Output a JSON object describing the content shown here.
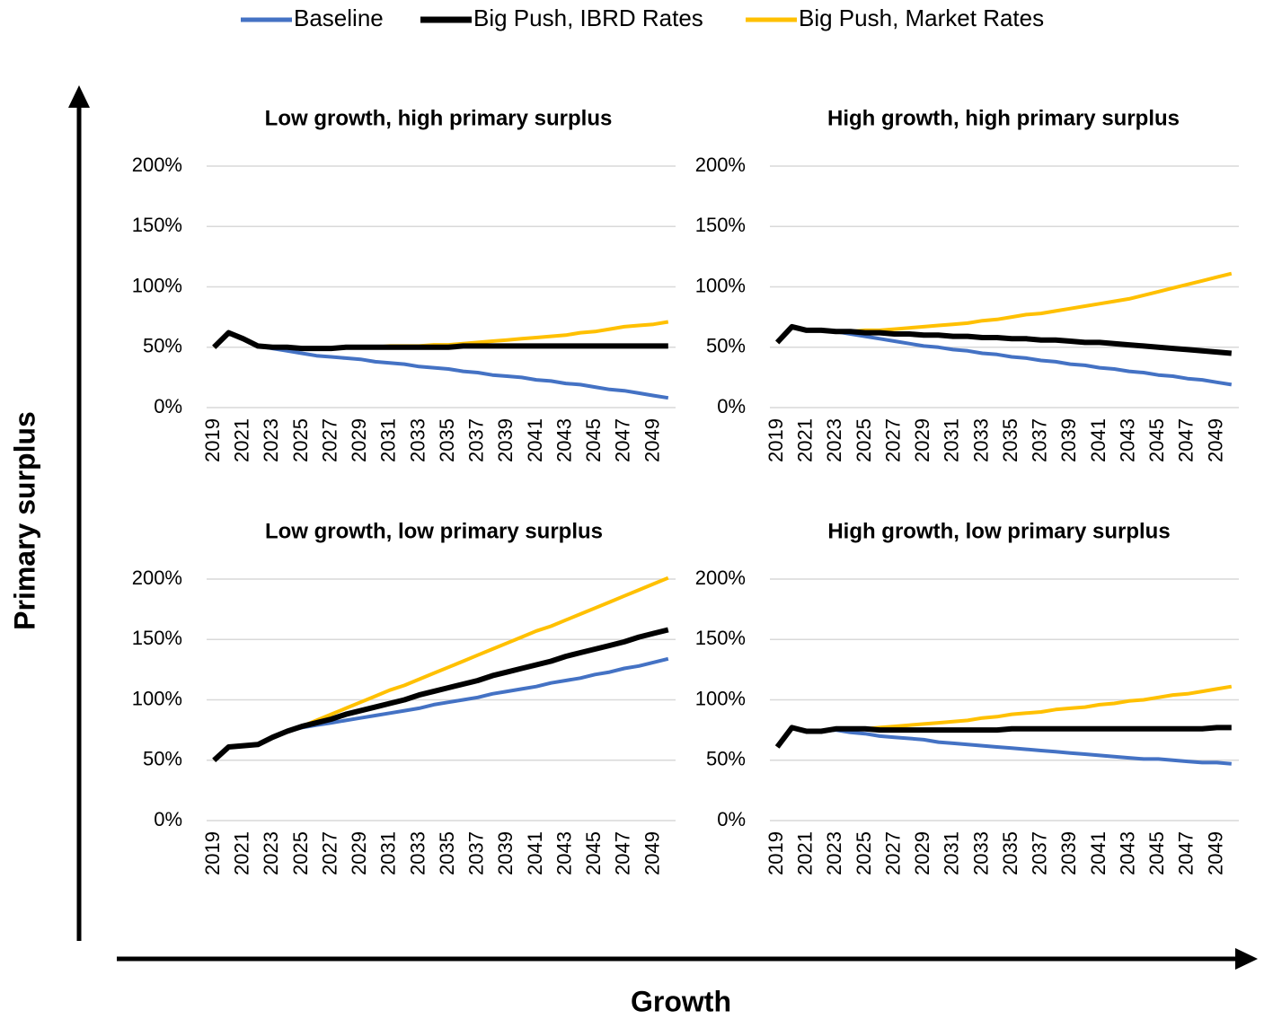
{
  "legend": [
    {
      "name": "Baseline",
      "color": "#4472c4"
    },
    {
      "name": "Big Push, IBRD Rates",
      "color": "#000000"
    },
    {
      "name": "Big Push, Market Rates",
      "color": "#ffc000"
    }
  ],
  "y_axis_label": "Primary surplus",
  "x_axis_label": "Growth",
  "chart_data": [
    {
      "type": "line",
      "title": "Low growth, high primary surplus",
      "categories": [
        "2019",
        null,
        "2021",
        null,
        "2023",
        null,
        "2025",
        null,
        "2027",
        null,
        "2029",
        null,
        "2031",
        null,
        "2033",
        null,
        "2035",
        null,
        "2037",
        null,
        "2039",
        null,
        "2041",
        null,
        "2043",
        null,
        "2045",
        null,
        "2047",
        null,
        "2049",
        null
      ],
      "series": [
        {
          "values": [
            50,
            62,
            57,
            51,
            49,
            47,
            45,
            43,
            42,
            41,
            40,
            38,
            37,
            36,
            34,
            33,
            32,
            30,
            29,
            27,
            26,
            25,
            23,
            22,
            20,
            19,
            17,
            15,
            14,
            12,
            10,
            8
          ]
        },
        {
          "values": [
            50,
            62,
            57,
            51,
            50,
            50,
            49,
            49,
            49,
            50,
            50,
            50,
            50,
            50,
            50,
            50,
            50,
            51,
            51,
            51,
            51,
            51,
            51,
            51,
            51,
            51,
            51,
            51,
            51,
            51,
            51,
            51
          ]
        },
        {
          "values": [
            50,
            62,
            57,
            51,
            50,
            50,
            49,
            49,
            49,
            50,
            50,
            50,
            51,
            51,
            51,
            52,
            52,
            53,
            54,
            55,
            56,
            57,
            58,
            59,
            60,
            62,
            63,
            65,
            67,
            68,
            69,
            71
          ]
        }
      ],
      "ylim": [
        0,
        200
      ],
      "yticks": [
        {
          "value": 0,
          "label": "0%"
        },
        {
          "value": 50,
          "label": "50%"
        },
        {
          "value": 100,
          "label": "100%"
        },
        {
          "value": 150,
          "label": "150%"
        },
        {
          "value": 200,
          "label": "200%"
        }
      ],
      "grid": true
    },
    {
      "type": "line",
      "title": "High growth, high primary surplus",
      "categories": [
        "2019",
        null,
        "2021",
        null,
        "2023",
        null,
        "2025",
        null,
        "2027",
        null,
        "2029",
        null,
        "2031",
        null,
        "2033",
        null,
        "2035",
        null,
        "2037",
        null,
        "2039",
        null,
        "2041",
        null,
        "2043",
        null,
        "2045",
        null,
        "2047",
        null,
        "2049",
        null
      ],
      "series": [
        {
          "values": [
            54,
            67,
            64,
            64,
            63,
            61,
            59,
            57,
            55,
            53,
            51,
            50,
            48,
            47,
            45,
            44,
            42,
            41,
            39,
            38,
            36,
            35,
            33,
            32,
            30,
            29,
            27,
            26,
            24,
            23,
            21,
            19
          ]
        },
        {
          "values": [
            54,
            67,
            64,
            64,
            63,
            63,
            62,
            62,
            61,
            61,
            60,
            60,
            59,
            59,
            58,
            58,
            57,
            57,
            56,
            56,
            55,
            54,
            54,
            53,
            52,
            51,
            50,
            49,
            48,
            47,
            46,
            45
          ]
        },
        {
          "values": [
            54,
            67,
            64,
            64,
            63,
            63,
            64,
            64,
            65,
            66,
            67,
            68,
            69,
            70,
            72,
            73,
            75,
            77,
            78,
            80,
            82,
            84,
            86,
            88,
            90,
            93,
            96,
            99,
            102,
            105,
            108,
            111
          ]
        }
      ],
      "ylim": [
        0,
        200
      ],
      "yticks": [
        {
          "value": 0,
          "label": "0%"
        },
        {
          "value": 50,
          "label": "50%"
        },
        {
          "value": 100,
          "label": "100%"
        },
        {
          "value": 150,
          "label": "150%"
        },
        {
          "value": 200,
          "label": "200%"
        }
      ],
      "grid": true
    },
    {
      "type": "line",
      "title": "Low growth, low primary surplus",
      "categories": [
        "2019",
        null,
        "2021",
        null,
        "2023",
        null,
        "2025",
        null,
        "2027",
        null,
        "2029",
        null,
        "2031",
        null,
        "2033",
        null,
        "2035",
        null,
        "2037",
        null,
        "2039",
        null,
        "2041",
        null,
        "2043",
        null,
        "2045",
        null,
        "2047",
        null,
        "2049",
        null
      ],
      "series": [
        {
          "values": [
            50,
            61,
            62,
            63,
            69,
            74,
            77,
            79,
            81,
            83,
            85,
            87,
            89,
            91,
            93,
            96,
            98,
            100,
            102,
            105,
            107,
            109,
            111,
            114,
            116,
            118,
            121,
            123,
            126,
            128,
            131,
            134
          ]
        },
        {
          "values": [
            50,
            61,
            62,
            63,
            69,
            74,
            78,
            81,
            84,
            88,
            91,
            94,
            97,
            100,
            104,
            107,
            110,
            113,
            116,
            120,
            123,
            126,
            129,
            132,
            136,
            139,
            142,
            145,
            148,
            152,
            155,
            158
          ]
        },
        {
          "values": [
            50,
            61,
            62,
            63,
            69,
            74,
            78,
            83,
            88,
            93,
            98,
            103,
            108,
            112,
            117,
            122,
            127,
            132,
            137,
            142,
            147,
            152,
            157,
            161,
            166,
            171,
            176,
            181,
            186,
            191,
            196,
            201
          ]
        }
      ],
      "ylim": [
        0,
        200
      ],
      "yticks": [
        {
          "value": 0,
          "label": "0%"
        },
        {
          "value": 50,
          "label": "50%"
        },
        {
          "value": 100,
          "label": "100%"
        },
        {
          "value": 150,
          "label": "150%"
        },
        {
          "value": 200,
          "label": "200%"
        }
      ],
      "grid": true
    },
    {
      "type": "line",
      "title": "High growth, low primary surplus",
      "categories": [
        "2019",
        null,
        "2021",
        null,
        "2023",
        null,
        "2025",
        null,
        "2027",
        null,
        "2029",
        null,
        "2031",
        null,
        "2033",
        null,
        "2035",
        null,
        "2037",
        null,
        "2039",
        null,
        "2041",
        null,
        "2043",
        null,
        "2045",
        null,
        "2047",
        null,
        "2049",
        null
      ],
      "series": [
        {
          "values": [
            61,
            77,
            74,
            74,
            75,
            73,
            72,
            70,
            69,
            68,
            67,
            65,
            64,
            63,
            62,
            61,
            60,
            59,
            58,
            57,
            56,
            55,
            54,
            53,
            52,
            51,
            51,
            50,
            49,
            48,
            48,
            47
          ]
        },
        {
          "values": [
            61,
            77,
            74,
            74,
            76,
            76,
            76,
            75,
            75,
            75,
            75,
            75,
            75,
            75,
            75,
            75,
            76,
            76,
            76,
            76,
            76,
            76,
            76,
            76,
            76,
            76,
            76,
            76,
            76,
            76,
            77,
            77
          ]
        },
        {
          "values": [
            61,
            77,
            74,
            74,
            76,
            76,
            76,
            77,
            78,
            79,
            80,
            81,
            82,
            83,
            85,
            86,
            88,
            89,
            90,
            92,
            93,
            94,
            96,
            97,
            99,
            100,
            102,
            104,
            105,
            107,
            109,
            111
          ]
        }
      ],
      "ylim": [
        0,
        200
      ],
      "yticks": [
        {
          "value": 0,
          "label": "0%"
        },
        {
          "value": 50,
          "label": "50%"
        },
        {
          "value": 100,
          "label": "100%"
        },
        {
          "value": 150,
          "label": "150%"
        },
        {
          "value": 200,
          "label": "200%"
        }
      ],
      "grid": true
    }
  ]
}
